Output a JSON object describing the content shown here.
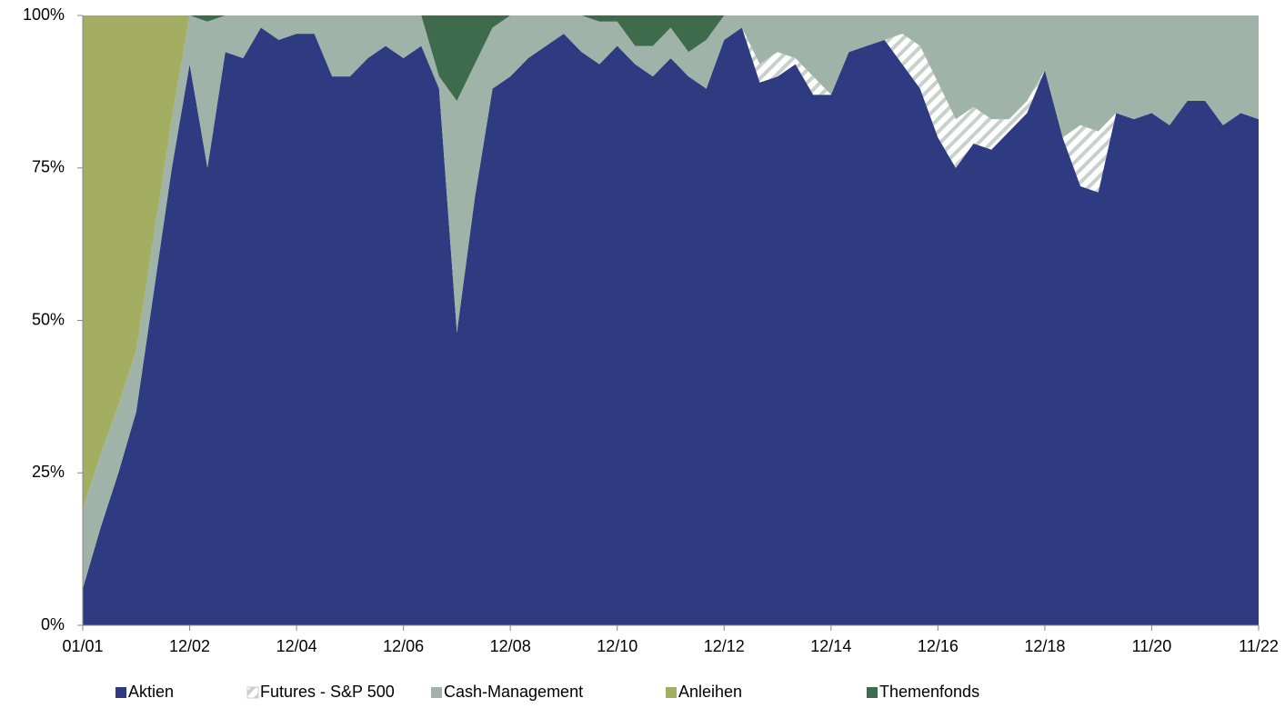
{
  "chart_data": {
    "type": "stacked_area",
    "categories": [
      "01/01",
      null,
      null,
      null,
      null,
      null,
      "12/02",
      null,
      null,
      null,
      null,
      null,
      "12/04",
      null,
      null,
      null,
      null,
      null,
      "12/06",
      null,
      null,
      null,
      null,
      null,
      "12/08",
      null,
      null,
      null,
      null,
      null,
      "12/10",
      null,
      null,
      null,
      null,
      null,
      "12/12",
      null,
      null,
      null,
      null,
      null,
      "12/14",
      null,
      null,
      null,
      null,
      null,
      "12/16",
      null,
      null,
      null,
      null,
      null,
      "12/18",
      null,
      null,
      null,
      null,
      null,
      "11/20",
      null,
      null,
      null,
      null,
      null,
      "11/22"
    ],
    "series": [
      {
        "name": "Aktien",
        "color": "#2e3b80",
        "values": [
          6,
          16,
          25,
          35,
          55,
          75,
          92,
          75,
          94,
          93,
          98,
          96,
          97,
          97,
          90,
          90,
          93,
          95,
          93,
          95,
          88,
          48,
          70,
          88,
          90,
          93,
          95,
          97,
          94,
          92,
          95,
          92,
          90,
          93,
          90,
          88,
          96,
          98,
          89,
          90,
          92,
          87,
          87,
          94,
          95,
          96,
          92,
          88,
          80,
          75,
          79,
          78,
          81,
          84,
          91,
          80,
          72,
          71,
          84,
          83,
          84,
          82,
          86,
          86,
          82,
          84,
          83
        ]
      },
      {
        "name": "Futures - S&P 500",
        "color": "#ffffff",
        "hatch": true,
        "values": [
          0,
          0,
          0,
          0,
          0,
          0,
          0,
          0,
          0,
          0,
          0,
          0,
          0,
          0,
          0,
          0,
          0,
          0,
          0,
          0,
          0,
          0,
          0,
          0,
          0,
          0,
          0,
          0,
          0,
          0,
          0,
          0,
          0,
          0,
          0,
          0,
          0,
          0,
          3,
          4,
          1,
          3,
          0,
          0,
          0,
          0,
          5,
          7,
          9,
          8,
          6,
          5,
          2,
          2,
          0,
          0,
          10,
          10,
          0,
          0,
          0,
          0,
          0,
          0,
          0,
          0,
          0
        ]
      },
      {
        "name": "Cash-Management",
        "color": "#9fb3a8",
        "values": [
          13,
          12,
          11,
          10,
          9,
          8,
          8,
          24,
          6,
          7,
          2,
          4,
          3,
          3,
          10,
          10,
          7,
          5,
          7,
          5,
          2,
          38,
          22,
          10,
          10,
          7,
          5,
          3,
          6,
          7,
          4,
          3,
          5,
          5,
          4,
          8,
          4,
          2,
          8,
          6,
          7,
          10,
          13,
          6,
          5,
          4,
          3,
          5,
          11,
          17,
          15,
          17,
          17,
          14,
          9,
          20,
          18,
          19,
          16,
          17,
          16,
          18,
          14,
          14,
          18,
          16,
          17
        ]
      },
      {
        "name": "Anleihen",
        "color": "#a4ae63",
        "values": [
          81,
          72,
          64,
          55,
          36,
          17,
          0,
          0,
          0,
          0,
          0,
          0,
          0,
          0,
          0,
          0,
          0,
          0,
          0,
          0,
          0,
          0,
          0,
          0,
          0,
          0,
          0,
          0,
          0,
          0,
          0,
          0,
          0,
          0,
          0,
          0,
          0,
          0,
          0,
          0,
          0,
          0,
          0,
          0,
          0,
          0,
          0,
          0,
          0,
          0,
          0,
          0,
          0,
          0,
          0,
          0,
          0,
          0,
          0,
          0,
          0,
          0,
          0,
          0,
          0,
          0,
          0
        ]
      },
      {
        "name": "Themenfonds",
        "color": "#3e6b4b",
        "values": [
          0,
          0,
          0,
          0,
          0,
          0,
          0,
          1,
          0,
          0,
          0,
          0,
          0,
          0,
          0,
          0,
          0,
          0,
          0,
          0,
          10,
          14,
          8,
          2,
          0,
          0,
          0,
          0,
          0,
          1,
          1,
          5,
          5,
          2,
          6,
          4,
          0,
          0,
          0,
          0,
          0,
          0,
          0,
          0,
          0,
          0,
          0,
          0,
          0,
          0,
          0,
          0,
          0,
          0,
          0,
          0,
          0,
          0,
          0,
          0,
          0,
          0,
          0,
          0,
          0,
          0,
          0
        ]
      }
    ],
    "ylim": [
      0,
      100
    ],
    "yticks": [
      {
        "value": 0,
        "label": "0%"
      },
      {
        "value": 25,
        "label": "25%"
      },
      {
        "value": 50,
        "label": "50%"
      },
      {
        "value": 75,
        "label": "75%"
      },
      {
        "value": 100,
        "label": "100%"
      }
    ],
    "grid": false,
    "legend": "bottom"
  }
}
